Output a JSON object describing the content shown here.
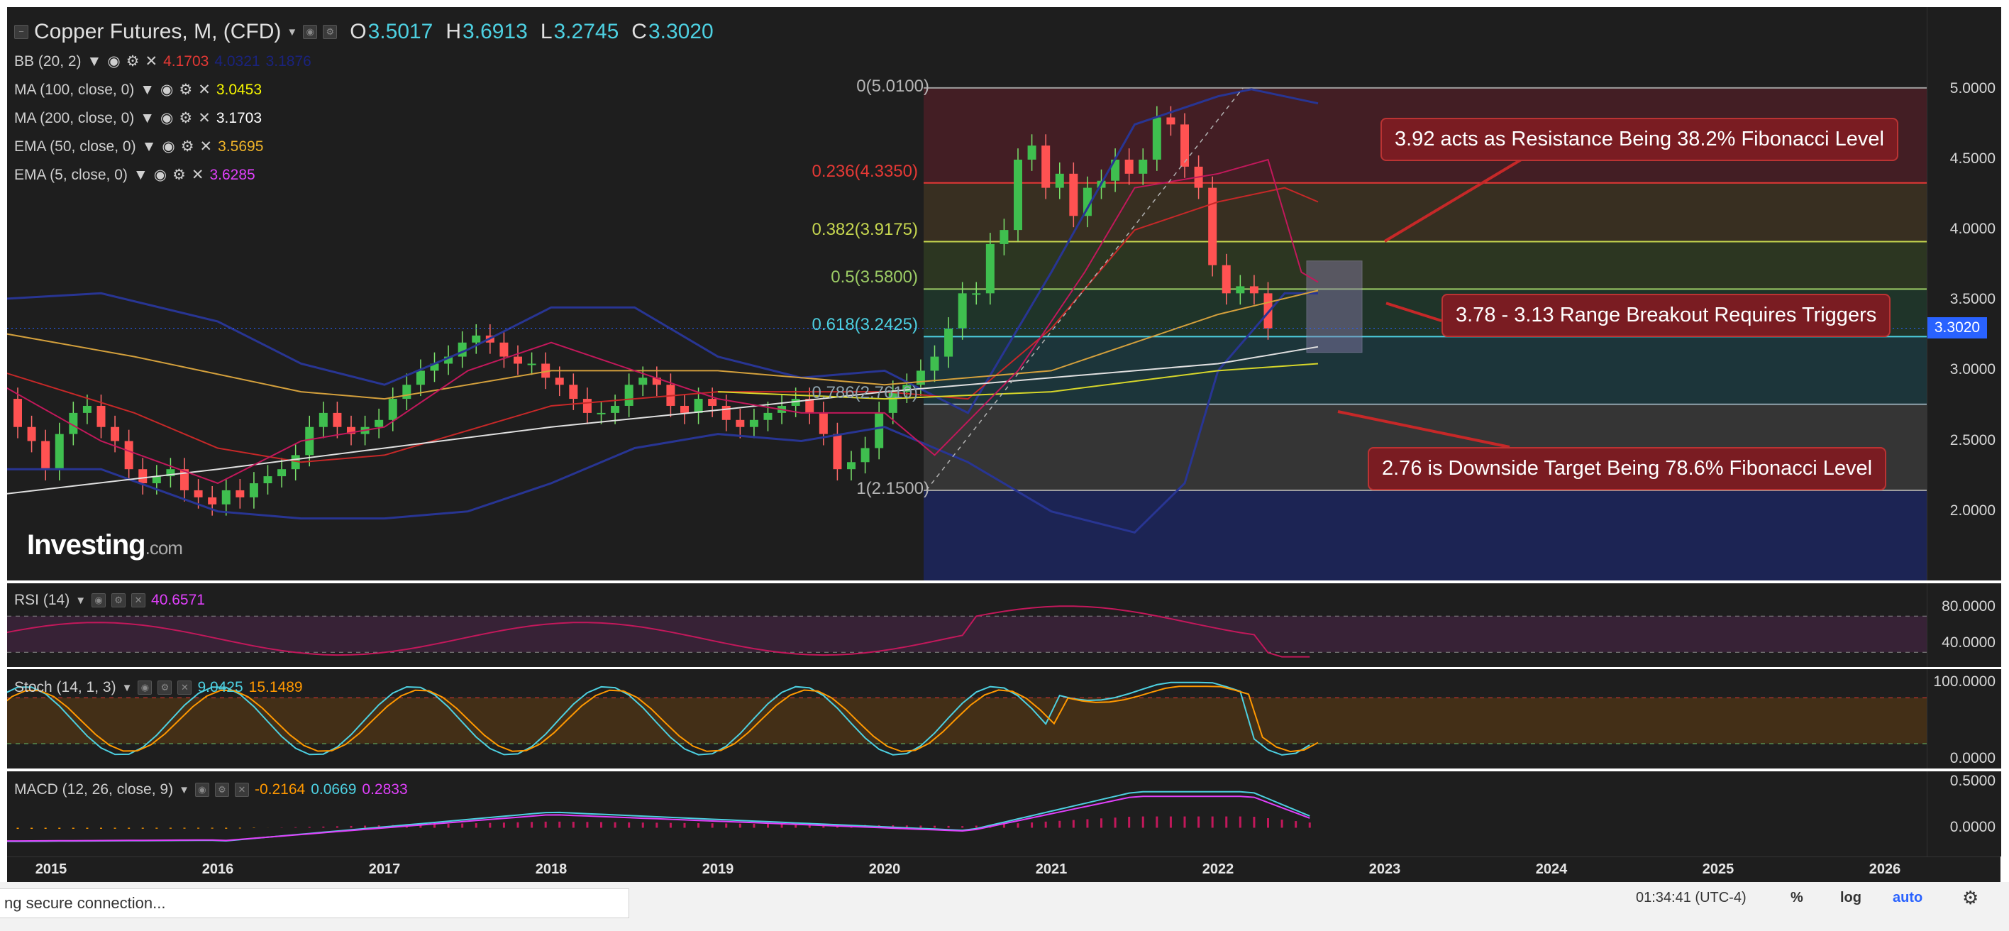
{
  "header": {
    "title": "Copper Futures, M, (CFD)",
    "o_label": "O",
    "o_value": "3.5017",
    "h_label": "H",
    "h_value": "3.6913",
    "l_label": "L",
    "l_value": "3.2745",
    "c_label": "C",
    "c_value": "3.3020"
  },
  "indicators": [
    {
      "label": "BB (20, 2)",
      "values": [
        "4.1703",
        "4.0321",
        "3.1876"
      ],
      "colors": [
        "#e53935",
        "#1a237e",
        "#1a237e"
      ]
    },
    {
      "label": "MA (100, close, 0)",
      "values": [
        "3.0453"
      ],
      "colors": [
        "#f7f700"
      ]
    },
    {
      "label": "MA (200, close, 0)",
      "values": [
        "3.1703"
      ],
      "colors": [
        "#ffffff"
      ]
    },
    {
      "label": "EMA (50, close, 0)",
      "values": [
        "3.5695"
      ],
      "colors": [
        "#f0b429"
      ]
    },
    {
      "label": "EMA (5, close, 0)",
      "values": [
        "3.6285"
      ],
      "colors": [
        "#e040fb"
      ]
    }
  ],
  "watermark": {
    "brand": "Investing",
    "suffix": ".com"
  },
  "price_axis": {
    "ticks": [
      "5.0000",
      "4.5000",
      "4.0000",
      "3.5000",
      "3.0000",
      "2.5000",
      "2.0000"
    ],
    "current": "3.3020",
    "current_color": "#2962ff"
  },
  "fibonacci": [
    {
      "label": "0(5.0100)",
      "value": 5.01,
      "color": "#9e9e9e"
    },
    {
      "label": "0.236(4.3350)",
      "value": 4.335,
      "color": "#e53935"
    },
    {
      "label": "0.382(3.9175)",
      "value": 3.9175,
      "color": "#c6d64f"
    },
    {
      "label": "0.5(3.5800)",
      "value": 3.58,
      "color": "#9ccc65"
    },
    {
      "label": "0.618(3.2425)",
      "value": 3.2425,
      "color": "#4dd0e1"
    },
    {
      "label": "0.786(2.7610)",
      "value": 2.761,
      "color": "#90a4ae"
    },
    {
      "label": "1(2.1500)",
      "value": 2.15,
      "color": "#9e9e9e"
    }
  ],
  "annotations": [
    {
      "text": "3.92 acts as Resistance Being  38.2% Fibonacci Level"
    },
    {
      "text": "3.78 - 3.13 Range Breakout Requires Triggers"
    },
    {
      "text": "2.76 is Downside Target Being 78.6% Fibonacci Level"
    }
  ],
  "rsi": {
    "label": "RSI (14)",
    "value": "40.6571",
    "value_color": "#e040fb",
    "ticks": [
      "80.0000",
      "40.0000"
    ]
  },
  "stoch": {
    "label": "Stoch (14, 1, 3)",
    "k": "9.0425",
    "d": "15.1489",
    "k_color": "#4dd0e1",
    "d_color": "#ff9800",
    "ticks": [
      "100.0000",
      "0.0000"
    ]
  },
  "macd": {
    "label": "MACD (12, 26, close, 9)",
    "hist": "-0.2164",
    "macd": "0.0669",
    "signal": "0.2833",
    "hist_color": "#ff9800",
    "macd_color": "#4dd0e1",
    "signal_color": "#e040fb",
    "ticks": [
      "0.5000",
      "0.0000"
    ]
  },
  "years": [
    "2015",
    "2016",
    "2017",
    "2018",
    "2019",
    "2020",
    "2021",
    "2022",
    "2023",
    "2024",
    "2025",
    "2026"
  ],
  "status": {
    "loading": "ng secure connection...",
    "time": "01:34:41 (UTC-4)",
    "percent": "%",
    "log": "log",
    "auto": "auto"
  }
}
